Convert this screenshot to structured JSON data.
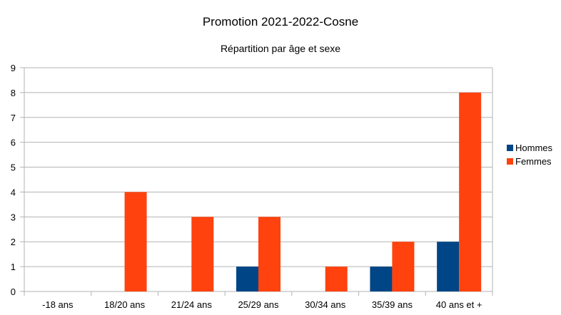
{
  "chart_data": {
    "type": "bar",
    "title": "Promotion 2021-2022-Cosne",
    "subtitle": "Répartition par âge et sexe",
    "categories": [
      "-18 ans",
      "18/20 ans",
      "21/24 ans",
      "25/29 ans",
      "30/34 ans",
      "35/39 ans",
      "40 ans et +"
    ],
    "series": [
      {
        "name": "Hommes",
        "values": [
          0,
          0,
          0,
          1,
          0,
          1,
          2
        ],
        "color": "#004586"
      },
      {
        "name": "Femmes",
        "values": [
          0,
          4,
          3,
          3,
          1,
          2,
          8
        ],
        "color": "#ff420e"
      }
    ],
    "ylim": [
      0,
      9
    ],
    "yticks": [
      0,
      1,
      2,
      3,
      4,
      5,
      6,
      7,
      8,
      9
    ],
    "grid": true,
    "legend": "right"
  }
}
